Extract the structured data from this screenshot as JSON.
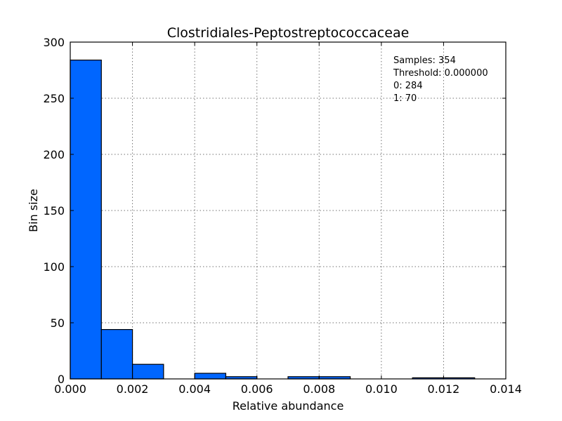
{
  "chart_data": {
    "type": "bar",
    "title": "Clostridiales-Peptostreptococcaceae",
    "xlabel": "Relative abundance",
    "ylabel": "Bin size",
    "xlim": [
      0.0,
      0.014
    ],
    "ylim": [
      0,
      300
    ],
    "grid": true,
    "x_ticks": [
      "0.000",
      "0.002",
      "0.004",
      "0.006",
      "0.008",
      "0.010",
      "0.012",
      "0.014"
    ],
    "y_ticks": [
      "0",
      "50",
      "100",
      "150",
      "200",
      "250",
      "300"
    ],
    "bin_edges": [
      0.0,
      0.001,
      0.002,
      0.003,
      0.004,
      0.005,
      0.006,
      0.007,
      0.008,
      0.009,
      0.01,
      0.011,
      0.012,
      0.013
    ],
    "values": [
      284,
      44,
      13,
      0,
      5,
      2,
      0,
      2,
      2,
      0,
      0,
      1,
      1
    ],
    "bar_color": "#0066ff",
    "annotations": [
      "Samples: 354",
      "Threshold: 0.000000",
      "0: 284",
      "1: 70"
    ]
  }
}
